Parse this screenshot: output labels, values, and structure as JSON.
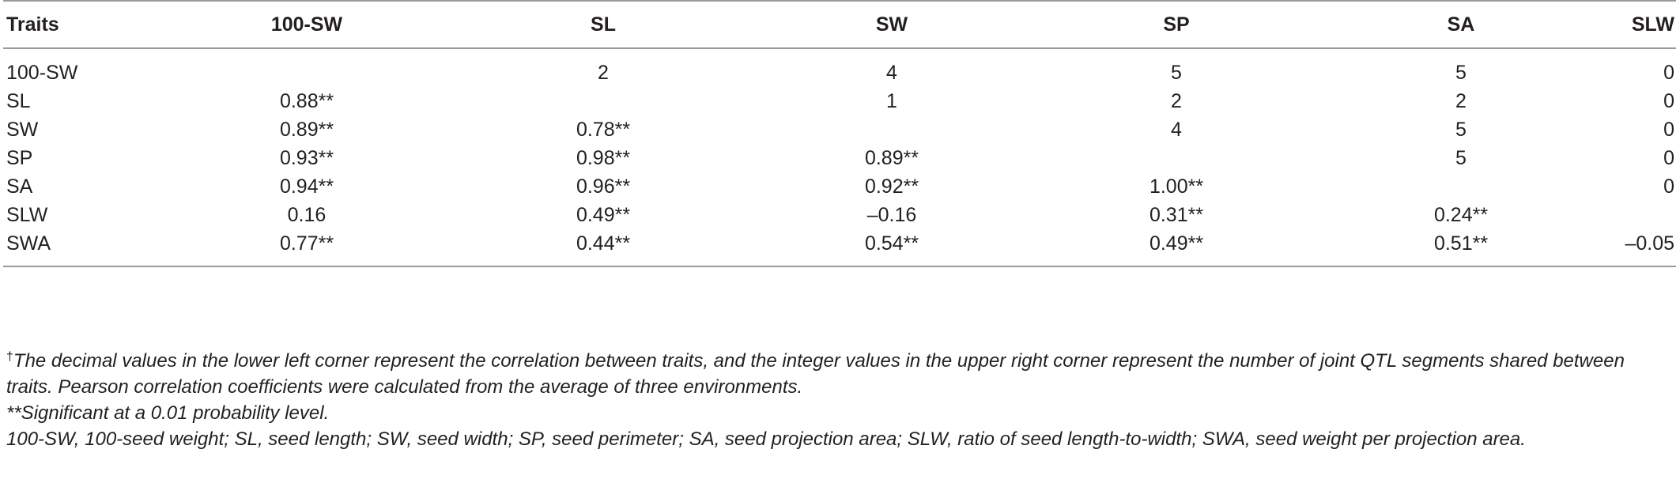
{
  "table": {
    "headers": [
      "Traits",
      "100-SW",
      "SL",
      "SW",
      "SP",
      "SA",
      "SLW"
    ],
    "rows": [
      [
        "100-SW",
        "",
        "2",
        "4",
        "5",
        "5",
        "0"
      ],
      [
        "SL",
        "0.88**",
        "",
        "1",
        "2",
        "2",
        "0"
      ],
      [
        "SW",
        "0.89**",
        "0.78**",
        "",
        "4",
        "5",
        "0"
      ],
      [
        "SP",
        "0.93**",
        "0.98**",
        "0.89**",
        "",
        "5",
        "0"
      ],
      [
        "SA",
        "0.94**",
        "0.96**",
        "0.92**",
        "1.00**",
        "",
        "0"
      ],
      [
        "SLW",
        "0.16",
        "0.49**",
        "–0.16",
        "0.31**",
        "0.24**",
        ""
      ],
      [
        "SWA",
        "0.77**",
        "0.44**",
        "0.54**",
        "0.49**",
        "0.51**",
        "–0.05"
      ]
    ]
  },
  "footnotes": {
    "dagger_symbol": "†",
    "dagger_text": "The decimal values in the lower left corner represent the correlation between traits, and the integer values in the upper right corner represent the number of joint QTL segments shared between traits. Pearson correlation coefficients were calculated from the average of three environments.",
    "significance": "**Significant at a 0.01 probability level.",
    "abbreviations": "100-SW, 100-seed weight; SL, seed length; SW, seed width; SP, seed perimeter; SA, seed projection area; SLW, ratio of seed length-to-width; SWA, seed weight per projection area."
  }
}
